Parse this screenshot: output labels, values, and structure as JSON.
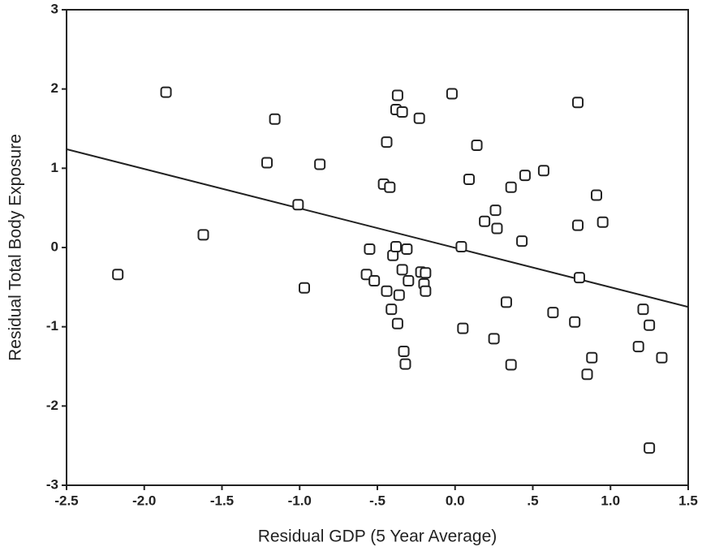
{
  "chart_data": {
    "type": "scatter",
    "xlabel": "Residual GDP (5 Year Average)",
    "ylabel": "Residual Total Body Exposure",
    "xlim": [
      -2.5,
      1.5
    ],
    "ylim": [
      -3,
      3
    ],
    "xticks": [
      -2.5,
      {
        "value": -2,
        "label": "-2.0"
      },
      -1.5,
      {
        "value": -1,
        "label": "-1.0"
      },
      {
        "value": -0.5,
        "label": "-.5"
      },
      {
        "value": 0,
        "label": "0.0"
      },
      {
        "value": 0.5,
        "label": ".5"
      },
      {
        "value": 1,
        "label": "1.0"
      },
      1.5
    ],
    "yticks": [
      3,
      2,
      1,
      0,
      -1,
      -2,
      -3
    ],
    "color": "#222222",
    "x": [
      -2.17,
      -1.86,
      -1.62,
      -1.21,
      -1.16,
      -1.01,
      -0.97,
      -0.87,
      -0.57,
      -0.55,
      -0.52,
      -0.46,
      -0.44,
      -0.44,
      -0.42,
      -0.41,
      -0.4,
      -0.38,
      -0.38,
      -0.37,
      -0.37,
      -0.36,
      -0.34,
      -0.34,
      -0.33,
      -0.32,
      -0.31,
      -0.3,
      -0.23,
      -0.22,
      -0.2,
      -0.19,
      -0.19,
      -0.02,
      0.04,
      0.05,
      0.09,
      0.14,
      0.19,
      0.25,
      0.26,
      0.27,
      0.33,
      0.36,
      0.36,
      0.43,
      0.45,
      0.57,
      0.63,
      0.77,
      0.79,
      0.79,
      0.8,
      0.85,
      0.88,
      0.91,
      0.95,
      1.18,
      1.21,
      1.25,
      1.25,
      1.33
    ],
    "values": [
      -0.34,
      1.96,
      0.16,
      1.07,
      1.62,
      0.54,
      -0.51,
      1.05,
      -0.34,
      -0.02,
      -0.42,
      0.8,
      -0.55,
      1.33,
      0.76,
      -0.78,
      -0.1,
      0.01,
      1.74,
      -0.96,
      1.92,
      -0.6,
      -0.28,
      1.71,
      -1.31,
      -1.47,
      -0.02,
      -0.42,
      1.63,
      -0.31,
      -0.46,
      -0.32,
      -0.55,
      1.94,
      0.01,
      -1.02,
      0.86,
      1.29,
      0.33,
      -1.15,
      0.47,
      0.24,
      -0.69,
      -1.48,
      0.76,
      0.08,
      0.91,
      0.97,
      -0.82,
      -0.94,
      1.83,
      0.28,
      -0.38,
      -1.6,
      -1.39,
      0.66,
      0.32,
      -1.25,
      -0.78,
      -0.98,
      -2.53,
      -1.39
    ],
    "trendline": {
      "x": [
        -2.5,
        1.5
      ],
      "y": [
        1.24,
        -0.75
      ]
    }
  }
}
